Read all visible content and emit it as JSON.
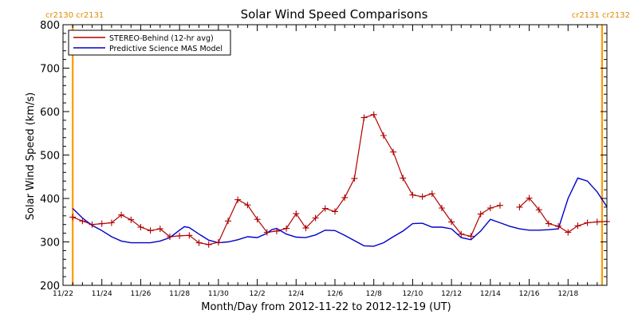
{
  "chart_data": {
    "type": "line",
    "title": "Solar Wind Speed Comparisons",
    "xlabel": "Month/Day from 2012-11-22 to 2012-12-19 (UT)",
    "ylabel": "Solar Wind Speed (km/s)",
    "xlim": [
      "2012-11-22T00:00",
      "2012-12-20T00:00"
    ],
    "ylim": [
      200,
      800
    ],
    "y_ticks": [
      200,
      300,
      400,
      500,
      600,
      700,
      800
    ],
    "x_ticks": [
      {
        "date": "2012-11-22",
        "label": "11/22"
      },
      {
        "date": "2012-11-24",
        "label": "11/24"
      },
      {
        "date": "2012-11-26",
        "label": "11/26"
      },
      {
        "date": "2012-11-28",
        "label": "11/28"
      },
      {
        "date": "2012-11-30",
        "label": "11/30"
      },
      {
        "date": "2012-12-02",
        "label": "12/2"
      },
      {
        "date": "2012-12-04",
        "label": "12/4"
      },
      {
        "date": "2012-12-06",
        "label": "12/6"
      },
      {
        "date": "2012-12-08",
        "label": "12/8"
      },
      {
        "date": "2012-12-10",
        "label": "12/10"
      },
      {
        "date": "2012-12-12",
        "label": "12/12"
      },
      {
        "date": "2012-12-14",
        "label": "12/14"
      },
      {
        "date": "2012-12-16",
        "label": "12/16"
      },
      {
        "date": "2012-12-18",
        "label": "12/18"
      }
    ],
    "grid": false,
    "legend_position": "top-left",
    "carrington_markers": [
      {
        "date": "2012-11-22T12:00",
        "label_left": "cr2130",
        "label_right": "cr2131",
        "label_side": "left"
      },
      {
        "date": "2012-12-19T18:00",
        "label_left": "cr2131",
        "label_right": "cr2132",
        "label_side": "right"
      }
    ],
    "series": [
      {
        "name": "STEREO-Behind (12-hr avg)",
        "color": "#b00000",
        "markers": "plus",
        "segments": [
          [
            [
              "2012-11-22T12:00",
              357
            ],
            [
              "2012-11-23T00:00",
              348
            ],
            [
              "2012-11-23T12:00",
              340
            ],
            [
              "2012-11-24T00:00",
              342
            ],
            [
              "2012-11-24T12:00",
              344
            ],
            [
              "2012-11-25T00:00",
              362
            ],
            [
              "2012-11-25T12:00",
              351
            ],
            [
              "2012-11-26T00:00",
              334
            ],
            [
              "2012-11-26T12:00",
              326
            ],
            [
              "2012-11-27T00:00",
              330
            ],
            [
              "2012-11-27T12:00",
              312
            ],
            [
              "2012-11-28T00:00",
              314
            ],
            [
              "2012-11-28T12:00",
              315
            ],
            [
              "2012-11-29T00:00",
              298
            ],
            [
              "2012-11-29T12:00",
              294
            ],
            [
              "2012-11-30T00:00",
              299
            ],
            [
              "2012-11-30T12:00",
              348
            ],
            [
              "2012-12-01T00:00",
              397
            ],
            [
              "2012-12-01T12:00",
              385
            ],
            [
              "2012-12-02T00:00",
              352
            ],
            [
              "2012-12-02T12:00",
              322
            ],
            [
              "2012-12-03T00:00",
              325
            ],
            [
              "2012-12-03T12:00",
              331
            ],
            [
              "2012-12-04T00:00",
              365
            ],
            [
              "2012-12-04T12:00",
              332
            ],
            [
              "2012-12-05T00:00",
              355
            ],
            [
              "2012-12-05T12:00",
              377
            ],
            [
              "2012-12-06T00:00",
              370
            ],
            [
              "2012-12-06T12:00",
              402
            ],
            [
              "2012-12-07T00:00",
              446
            ],
            [
              "2012-12-07T12:00",
              586
            ],
            [
              "2012-12-08T00:00",
              593
            ],
            [
              "2012-12-08T12:00",
              545
            ],
            [
              "2012-12-09T00:00",
              507
            ],
            [
              "2012-12-09T12:00",
              447
            ],
            [
              "2012-12-10T00:00",
              408
            ],
            [
              "2012-12-10T12:00",
              404
            ],
            [
              "2012-12-11T00:00",
              411
            ],
            [
              "2012-12-11T12:00",
              378
            ],
            [
              "2012-12-12T00:00",
              346
            ],
            [
              "2012-12-12T12:00",
              318
            ],
            [
              "2012-12-13T00:00",
              313
            ],
            [
              "2012-12-13T12:00",
              364
            ],
            [
              "2012-12-14T00:00",
              378
            ],
            [
              "2012-12-14T12:00",
              384
            ]
          ],
          [
            [
              "2012-12-15T12:00",
              380
            ],
            [
              "2012-12-16T00:00",
              401
            ],
            [
              "2012-12-16T12:00",
              374
            ],
            [
              "2012-12-17T00:00",
              342
            ],
            [
              "2012-12-17T12:00",
              336
            ],
            [
              "2012-12-18T00:00",
              322
            ],
            [
              "2012-12-18T12:00",
              337
            ],
            [
              "2012-12-19T00:00",
              344
            ],
            [
              "2012-12-19T12:00",
              346
            ],
            [
              "2012-12-20T00:00",
              347
            ]
          ]
        ]
      },
      {
        "name": "Predictive Science MAS Model",
        "color": "#0000cc",
        "markers": "none",
        "segments": [
          [
            [
              "2012-11-22T12:00",
              377
            ],
            [
              "2012-11-23T00:00",
              355
            ],
            [
              "2012-11-23T12:00",
              338
            ],
            [
              "2012-11-24T00:00",
              326
            ],
            [
              "2012-11-24T12:00",
              312
            ],
            [
              "2012-11-25T00:00",
              302
            ],
            [
              "2012-11-25T12:00",
              298
            ],
            [
              "2012-11-26T00:00",
              298
            ],
            [
              "2012-11-26T12:00",
              298
            ],
            [
              "2012-11-27T00:00",
              302
            ],
            [
              "2012-11-27T12:00",
              310
            ],
            [
              "2012-11-28T00:00",
              327
            ],
            [
              "2012-11-28T06:00",
              335
            ],
            [
              "2012-11-28T12:00",
              333
            ],
            [
              "2012-11-29T00:00",
              318
            ],
            [
              "2012-11-29T12:00",
              304
            ],
            [
              "2012-11-30T00:00",
              298
            ],
            [
              "2012-11-30T12:00",
              300
            ],
            [
              "2012-12-01T00:00",
              305
            ],
            [
              "2012-12-01T12:00",
              312
            ],
            [
              "2012-12-02T00:00",
              310
            ],
            [
              "2012-12-02T12:00",
              320
            ],
            [
              "2012-12-02T18:00",
              328
            ],
            [
              "2012-12-03T00:00",
              331
            ],
            [
              "2012-12-03T12:00",
              318
            ],
            [
              "2012-12-04T00:00",
              311
            ],
            [
              "2012-12-04T12:00",
              310
            ],
            [
              "2012-12-05T00:00",
              316
            ],
            [
              "2012-12-05T12:00",
              327
            ],
            [
              "2012-12-06T00:00",
              326
            ],
            [
              "2012-12-06T12:00",
              315
            ],
            [
              "2012-12-07T00:00",
              303
            ],
            [
              "2012-12-07T12:00",
              291
            ],
            [
              "2012-12-08T00:00",
              290
            ],
            [
              "2012-12-08T12:00",
              298
            ],
            [
              "2012-12-09T00:00",
              312
            ],
            [
              "2012-12-09T12:00",
              325
            ],
            [
              "2012-12-10T00:00",
              342
            ],
            [
              "2012-12-10T12:00",
              343
            ],
            [
              "2012-12-11T00:00",
              334
            ],
            [
              "2012-12-11T12:00",
              334
            ],
            [
              "2012-12-12T00:00",
              330
            ],
            [
              "2012-12-12T12:00",
              310
            ],
            [
              "2012-12-13T00:00",
              305
            ],
            [
              "2012-12-13T12:00",
              325
            ],
            [
              "2012-12-14T00:00",
              352
            ],
            [
              "2012-12-14T12:00",
              344
            ],
            [
              "2012-12-15T00:00",
              336
            ],
            [
              "2012-12-15T12:00",
              330
            ],
            [
              "2012-12-16T00:00",
              327
            ],
            [
              "2012-12-16T12:00",
              327
            ],
            [
              "2012-12-17T00:00",
              328
            ],
            [
              "2012-12-17T12:00",
              330
            ],
            [
              "2012-12-18T00:00",
              400
            ],
            [
              "2012-12-18T12:00",
              447
            ],
            [
              "2012-12-19T00:00",
              440
            ],
            [
              "2012-12-19T12:00",
              415
            ],
            [
              "2012-12-20T00:00",
              381
            ]
          ]
        ]
      }
    ]
  }
}
